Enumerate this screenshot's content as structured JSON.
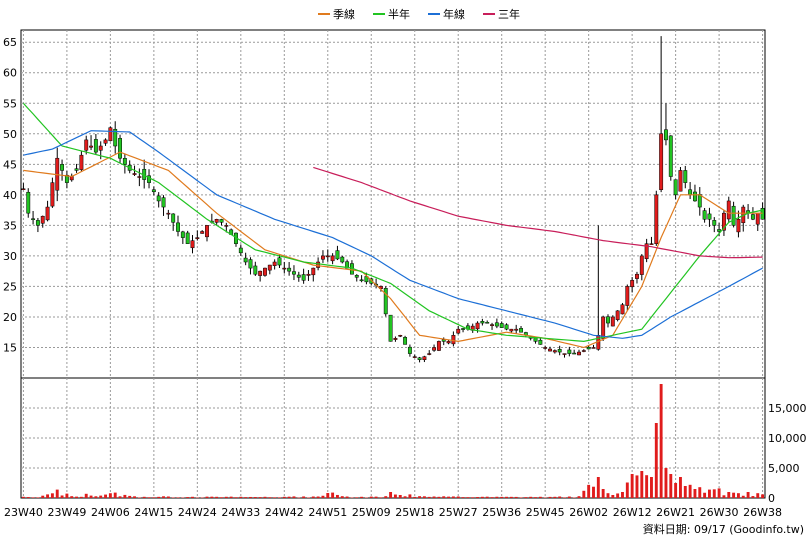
{
  "chart_data": {
    "type": "candlestick",
    "legend": [
      {
        "name": "季線",
        "color": "#e07b1e"
      },
      {
        "name": "半年",
        "color": "#22c422"
      },
      {
        "name": "年線",
        "color": "#1c6fd6"
      },
      {
        "name": "三年",
        "color": "#c81e5a"
      }
    ],
    "price_axis": {
      "ylim": [
        10,
        67
      ],
      "ticks": [
        15,
        20,
        25,
        30,
        35,
        40,
        45,
        50,
        55,
        60,
        65
      ]
    },
    "volume_axis": {
      "ylim": [
        0,
        20000
      ],
      "ticks": [
        0,
        5000,
        10000,
        15000
      ],
      "tick_labels": [
        "0",
        "5,000",
        "10,000",
        "15,000"
      ]
    },
    "x_tick_labels": [
      "23W40",
      "23W49",
      "24W06",
      "24W15",
      "24W24",
      "24W33",
      "24W42",
      "24W51",
      "25W09",
      "25W18",
      "25W27",
      "25W36",
      "25W45",
      "26W02",
      "26W12",
      "26W21",
      "26W30",
      "26W38"
    ],
    "week_count": 154,
    "up_color": "#e01c1c",
    "down_color": "#22c422",
    "close_anchors": [
      [
        0,
        41
      ],
      [
        1,
        37
      ],
      [
        3,
        35
      ],
      [
        5,
        38
      ],
      [
        7,
        46
      ],
      [
        9,
        42
      ],
      [
        11,
        44
      ],
      [
        13,
        49
      ],
      [
        15,
        47
      ],
      [
        17,
        49
      ],
      [
        18,
        51
      ],
      [
        19,
        48
      ],
      [
        20,
        46
      ],
      [
        22,
        44
      ],
      [
        24,
        43
      ],
      [
        26,
        42
      ],
      [
        28,
        39
      ],
      [
        30,
        37
      ],
      [
        32,
        34
      ],
      [
        34,
        32
      ],
      [
        36,
        33
      ],
      [
        38,
        35
      ],
      [
        40,
        36
      ],
      [
        42,
        35
      ],
      [
        44,
        32
      ],
      [
        46,
        29
      ],
      [
        48,
        27
      ],
      [
        50,
        28
      ],
      [
        52,
        29
      ],
      [
        54,
        28
      ],
      [
        56,
        27
      ],
      [
        58,
        26
      ],
      [
        60,
        28
      ],
      [
        62,
        30
      ],
      [
        64,
        30
      ],
      [
        66,
        29
      ],
      [
        68,
        27
      ],
      [
        70,
        26
      ],
      [
        72,
        25.5
      ],
      [
        74,
        25
      ],
      [
        76,
        16
      ],
      [
        78,
        17
      ],
      [
        80,
        14
      ],
      [
        82,
        13
      ],
      [
        84,
        14
      ],
      [
        86,
        16
      ],
      [
        88,
        16
      ],
      [
        90,
        18
      ],
      [
        92,
        18
      ],
      [
        94,
        19
      ],
      [
        96,
        19
      ],
      [
        98,
        18.5
      ],
      [
        100,
        18
      ],
      [
        102,
        18
      ],
      [
        104,
        17
      ],
      [
        106,
        16
      ],
      [
        108,
        15
      ],
      [
        110,
        14.5
      ],
      [
        112,
        14
      ],
      [
        114,
        14
      ],
      [
        116,
        14.5
      ],
      [
        118,
        15
      ],
      [
        119,
        17
      ],
      [
        120,
        20
      ],
      [
        121,
        19
      ],
      [
        122,
        20
      ],
      [
        123,
        21
      ],
      [
        124,
        22
      ],
      [
        125,
        25
      ],
      [
        126,
        26
      ],
      [
        127,
        27
      ],
      [
        128,
        30
      ],
      [
        129,
        32
      ],
      [
        130,
        32
      ],
      [
        131,
        40
      ],
      [
        132,
        50
      ],
      [
        133,
        49
      ],
      [
        134,
        43
      ],
      [
        135,
        40
      ],
      [
        136,
        44
      ],
      [
        137,
        42
      ],
      [
        138,
        40
      ],
      [
        139,
        39
      ],
      [
        140,
        38
      ],
      [
        141,
        36
      ],
      [
        142,
        36
      ],
      [
        143,
        35
      ],
      [
        144,
        34
      ],
      [
        145,
        37
      ],
      [
        146,
        39
      ],
      [
        147,
        35
      ],
      [
        148,
        36
      ],
      [
        149,
        38
      ],
      [
        150,
        37
      ],
      [
        151,
        36
      ],
      [
        152,
        37
      ],
      [
        153,
        36
      ]
    ],
    "wick_spikes": [
      [
        119,
        35
      ],
      [
        131,
        34
      ],
      [
        132,
        66
      ],
      [
        133,
        55
      ]
    ],
    "volume_anchors": [
      [
        0,
        200
      ],
      [
        3,
        100
      ],
      [
        5,
        600
      ],
      [
        7,
        1400
      ],
      [
        10,
        300
      ],
      [
        13,
        700
      ],
      [
        16,
        400
      ],
      [
        19,
        900
      ],
      [
        22,
        350
      ],
      [
        25,
        200
      ],
      [
        30,
        250
      ],
      [
        35,
        200
      ],
      [
        40,
        200
      ],
      [
        45,
        200
      ],
      [
        50,
        200
      ],
      [
        55,
        220
      ],
      [
        60,
        250
      ],
      [
        64,
        900
      ],
      [
        66,
        300
      ],
      [
        70,
        200
      ],
      [
        75,
        300
      ],
      [
        76,
        1000
      ],
      [
        78,
        500
      ],
      [
        80,
        600
      ],
      [
        82,
        300
      ],
      [
        85,
        250
      ],
      [
        90,
        250
      ],
      [
        95,
        200
      ],
      [
        100,
        200
      ],
      [
        105,
        200
      ],
      [
        110,
        200
      ],
      [
        115,
        300
      ],
      [
        119,
        3500
      ],
      [
        120,
        1500
      ],
      [
        121,
        800
      ],
      [
        122,
        500
      ],
      [
        124,
        1000
      ],
      [
        126,
        4000
      ],
      [
        128,
        4500
      ],
      [
        129,
        3800
      ],
      [
        130,
        3500
      ],
      [
        131,
        12500
      ],
      [
        132,
        19000
      ],
      [
        133,
        5000
      ],
      [
        134,
        4000
      ],
      [
        135,
        2500
      ],
      [
        136,
        3500
      ],
      [
        137,
        2000
      ],
      [
        138,
        2200
      ],
      [
        139,
        1500
      ],
      [
        140,
        1800
      ],
      [
        142,
        1400
      ],
      [
        144,
        1600
      ],
      [
        146,
        1000
      ],
      [
        148,
        800
      ],
      [
        150,
        1000
      ],
      [
        152,
        800
      ],
      [
        153,
        600
      ]
    ],
    "ma_quarter_anchors": [
      [
        0,
        44
      ],
      [
        10,
        43
      ],
      [
        20,
        47
      ],
      [
        30,
        44
      ],
      [
        40,
        37
      ],
      [
        50,
        31
      ],
      [
        60,
        28.5
      ],
      [
        70,
        27.5
      ],
      [
        76,
        23
      ],
      [
        82,
        17
      ],
      [
        90,
        16
      ],
      [
        100,
        17.5
      ],
      [
        108,
        16.5
      ],
      [
        116,
        15
      ],
      [
        122,
        17
      ],
      [
        128,
        25
      ],
      [
        132,
        33
      ],
      [
        136,
        40
      ],
      [
        140,
        40
      ],
      [
        146,
        37
      ],
      [
        153,
        37
      ]
    ],
    "ma_half_anchors": [
      [
        0,
        55
      ],
      [
        8,
        48
      ],
      [
        18,
        46
      ],
      [
        28,
        42
      ],
      [
        38,
        36
      ],
      [
        48,
        31
      ],
      [
        58,
        29
      ],
      [
        68,
        28
      ],
      [
        76,
        25.5
      ],
      [
        84,
        21
      ],
      [
        92,
        18
      ],
      [
        100,
        17
      ],
      [
        108,
        16.5
      ],
      [
        116,
        16
      ],
      [
        122,
        17
      ],
      [
        128,
        18
      ],
      [
        134,
        24
      ],
      [
        140,
        30
      ],
      [
        146,
        35.5
      ],
      [
        150,
        37
      ],
      [
        153,
        37.5
      ]
    ],
    "ma_year_anchors": [
      [
        0,
        46.5
      ],
      [
        6,
        47.5
      ],
      [
        10,
        49
      ],
      [
        14,
        50.5
      ],
      [
        22,
        50.3
      ],
      [
        28,
        47
      ],
      [
        40,
        40
      ],
      [
        52,
        36
      ],
      [
        64,
        33
      ],
      [
        72,
        30
      ],
      [
        80,
        26
      ],
      [
        90,
        23
      ],
      [
        100,
        21
      ],
      [
        110,
        19
      ],
      [
        118,
        17
      ],
      [
        124,
        16.5
      ],
      [
        128,
        17
      ],
      [
        134,
        20
      ],
      [
        140,
        22.5
      ],
      [
        146,
        25
      ],
      [
        153,
        28
      ]
    ],
    "ma_3y_anchors": [
      [
        60,
        44.5
      ],
      [
        70,
        42
      ],
      [
        80,
        39
      ],
      [
        90,
        36.5
      ],
      [
        100,
        35
      ],
      [
        110,
        34
      ],
      [
        120,
        32.5
      ],
      [
        130,
        31.5
      ],
      [
        140,
        30
      ],
      [
        146,
        29.7
      ],
      [
        153,
        29.8
      ]
    ],
    "source": "資料日期: 09/17 (Goodinfo.tw)"
  }
}
